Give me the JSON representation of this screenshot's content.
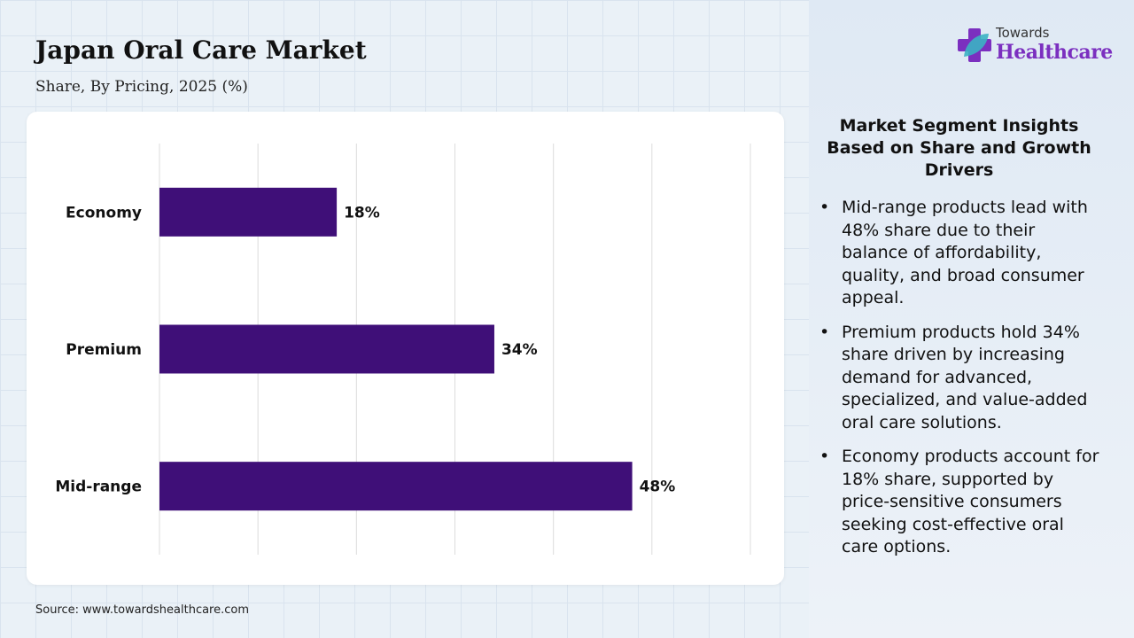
{
  "header": {
    "title": "Japan Oral Care Market",
    "subtitle": "Share, By Pricing, 2025 (%)"
  },
  "logo": {
    "top_text": "Towards",
    "main_text": "Healthcare",
    "icon": "cross-leaf-logo-icon",
    "colors": {
      "purple": "#7b2fbf",
      "teal": "#3bb3c3"
    }
  },
  "chart_data": {
    "type": "bar",
    "orientation": "horizontal",
    "categories": [
      "Economy",
      "Premium",
      "Mid-range"
    ],
    "values": [
      18,
      34,
      48
    ],
    "value_labels": [
      "18%",
      "34%",
      "48%"
    ],
    "xlim": [
      0,
      60
    ],
    "grid": true,
    "bar_color": "#3f0f78"
  },
  "insights": {
    "title": "Market Segment Insights Based on Share and Growth Drivers",
    "items": [
      "Mid-range products lead with 48% share due to their balance of affordability, quality, and broad consumer appeal.",
      "Premium products hold 34% share driven by increasing demand for advanced, specialized, and value-added oral care solutions.",
      "Economy products account for 18% share, supported by price-sensitive consumers seeking cost-effective oral care options."
    ]
  },
  "footer": {
    "source": "Source: www.towardshealthcare.com"
  }
}
